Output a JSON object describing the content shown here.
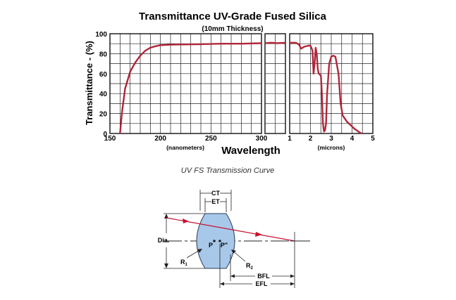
{
  "chart_data": {
    "type": "line",
    "title": "Transmittance UV-Grade Fused Silica",
    "subtitle": "(10mm Thickness)",
    "ylabel": "Transmittance - (%)",
    "xlabel": "Wavelength",
    "ylim": [
      0,
      100
    ],
    "yticks": [
      "0",
      "20",
      "40",
      "60",
      "80",
      "100"
    ],
    "panels": [
      {
        "unit_label": "(nanometers)",
        "xlim": [
          150,
          300
        ],
        "xticks": [
          "150",
          "200",
          "250",
          "300"
        ],
        "series": [
          {
            "color": "#b0263a",
            "x": [
              160,
              162,
              165,
              170,
              175,
              180,
              185,
              190,
              195,
              200,
              210,
              220,
              240,
              260,
              280,
              300
            ],
            "y": [
              0,
              22,
              45,
              62,
              71,
              78,
              83,
              86,
              87.5,
              88.5,
              89,
              89.2,
              89.5,
              90,
              90,
              90.5
            ]
          }
        ]
      },
      {
        "unit_label": "",
        "xlim": [
          0,
          1
        ],
        "xticks": [],
        "series": [
          {
            "color": "#b0263a",
            "x": [
              0,
              0.3,
              0.6,
              1
            ],
            "y": [
              90.5,
              91,
              90.5,
              91
            ]
          }
        ]
      },
      {
        "unit_label": "(microns)",
        "xlim": [
          1,
          5
        ],
        "xticks": [
          "1",
          "2",
          "3",
          "4",
          "5"
        ],
        "series": [
          {
            "color": "#b0263a",
            "x": [
              1,
              1.3,
              1.45,
              1.55,
              1.7,
              1.9,
              2.0,
              2.1,
              2.15,
              2.2,
              2.25,
              2.3,
              2.35,
              2.4,
              2.5,
              2.55,
              2.6,
              2.65,
              2.7,
              2.75,
              2.8,
              2.9,
              3.0,
              3.1,
              3.2,
              3.35,
              3.45,
              3.55,
              3.65,
              3.75,
              3.9,
              4.1,
              4.3,
              4.45
            ],
            "y": [
              91,
              91,
              89,
              85,
              87,
              88,
              88,
              83,
              60,
              70,
              86,
              80,
              65,
              60,
              58,
              40,
              10,
              2,
              3,
              10,
              40,
              70,
              77,
              78,
              77,
              60,
              30,
              18,
              15,
              12,
              9,
              5,
              2,
              0
            ]
          }
        ]
      }
    ],
    "caption": "UV FS Transmission Curve"
  },
  "lens_diagram": {
    "labels": {
      "ct": "CT",
      "et": "ET",
      "dia": "Dia.",
      "p": "P",
      "p2": "P\"",
      "r1": "R",
      "r1_sub": "1",
      "r2": "R",
      "r2_sub": "2",
      "bfl": "BFL",
      "efl": "EFL"
    },
    "colors": {
      "lens": "#a8c8ea",
      "ray": "#c8102e"
    }
  }
}
